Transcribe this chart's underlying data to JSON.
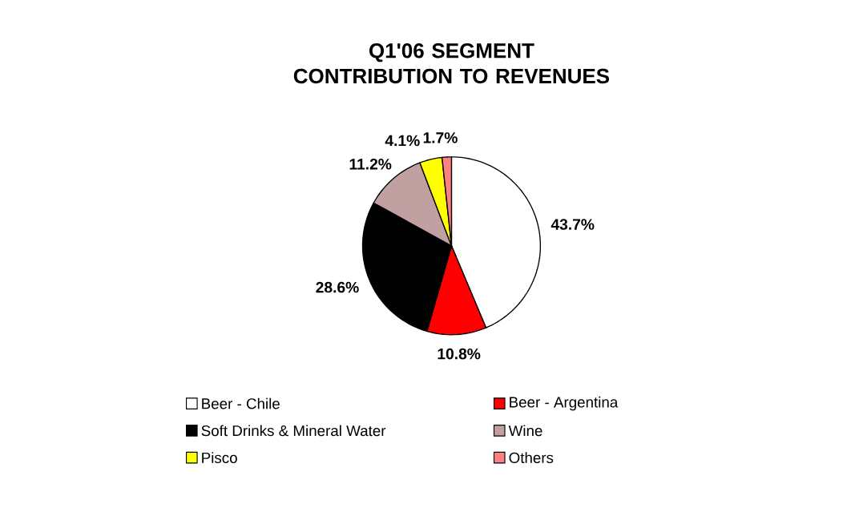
{
  "chart_data": {
    "type": "pie",
    "title": "Q1'06 SEGMENT CONTRIBUTION TO REVENUES",
    "categories": [
      "Beer - Chile",
      "Beer - Argentina",
      "Soft Drinks &  Mineral Water",
      "Wine",
      "Pisco",
      "Others"
    ],
    "values": [
      43.7,
      10.8,
      28.6,
      11.2,
      4.1,
      1.7
    ],
    "value_labels": [
      "43.7%",
      "10.8%",
      "28.6%",
      "11.2%",
      "4.1%",
      "1.7%"
    ],
    "colors": [
      "#ffffff",
      "#ff0000",
      "#000000",
      "#c0a0a0",
      "#ffff00",
      "#ff8080"
    ],
    "legend": "bottom"
  }
}
